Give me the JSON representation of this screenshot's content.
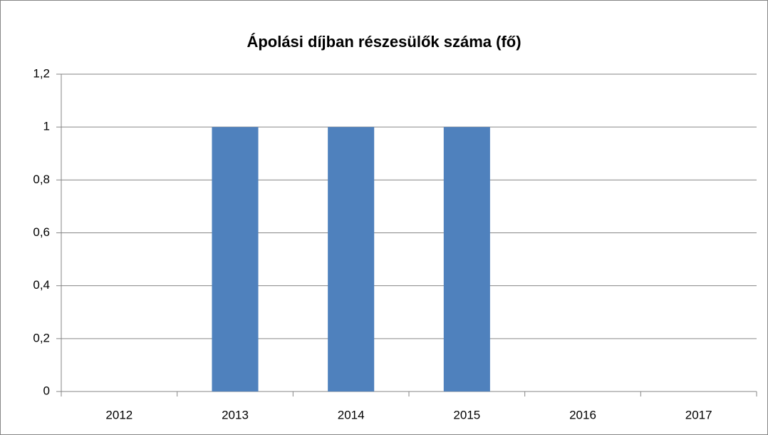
{
  "chart_data": {
    "type": "bar",
    "title": "Ápolási díjban részesülők száma (fő)",
    "categories": [
      "2012",
      "2013",
      "2014",
      "2015",
      "2016",
      "2017"
    ],
    "values": [
      0,
      1,
      1,
      1,
      0,
      0
    ],
    "color": "#4f81bd",
    "ylim": [
      0,
      1.2
    ],
    "yticks": [
      0,
      {
        "value": 0.2,
        "label": "0,2"
      },
      {
        "value": 0.4,
        "label": "0,4"
      },
      {
        "value": 0.6,
        "label": "0,6"
      },
      {
        "value": 0.8,
        "label": "0,8"
      },
      1,
      {
        "value": 1.2,
        "label": "1,2"
      }
    ],
    "grid": true
  }
}
